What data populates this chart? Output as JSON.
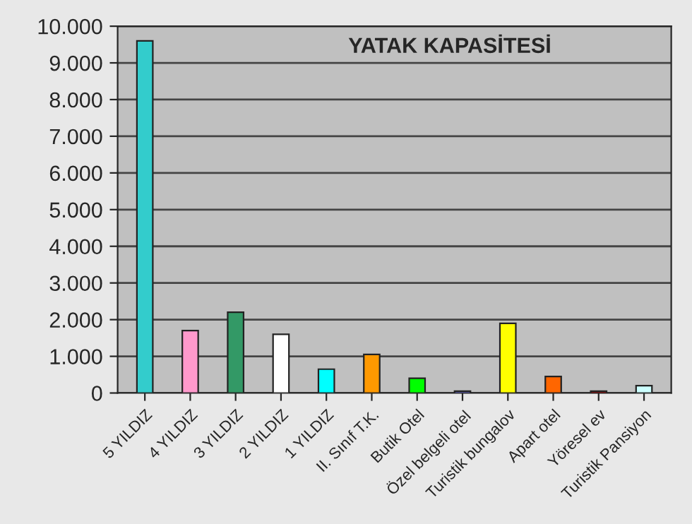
{
  "chart_data": {
    "type": "bar",
    "title": "YATAK KAPASİTESİ",
    "categories": [
      "5 YILDIZ",
      "4 YILDIZ",
      "3 YILDIZ",
      "2 YILDIZ",
      "1 YILDIZ",
      "II. Sınıf T.K.",
      "Butik Otel",
      "Özel belgeli otel",
      "Turistik bungalov",
      "Apart otel",
      "Yöresel ev",
      "Turistik Pansiyon"
    ],
    "values": [
      9600,
      1700,
      2200,
      1600,
      650,
      1050,
      400,
      50,
      1900,
      450,
      50,
      200
    ],
    "colors": [
      "#33cccc",
      "#ff99cc",
      "#339966",
      "#ffffff",
      "#00ffff",
      "#ff9900",
      "#00ff00",
      "#8080ff",
      "#ffff00",
      "#ff6600",
      "#cc0000",
      "#ccffff"
    ],
    "ylim": [
      0,
      10000
    ],
    "yticks": [
      {
        "value": 0,
        "label": "0"
      },
      {
        "value": 1000,
        "label": "1.000"
      },
      {
        "value": 2000,
        "label": "2.000"
      },
      {
        "value": 3000,
        "label": "3.000"
      },
      {
        "value": 4000,
        "label": "4.000"
      },
      {
        "value": 5000,
        "label": "5.000"
      },
      {
        "value": 6000,
        "label": "6.000"
      },
      {
        "value": 7000,
        "label": "7.000"
      },
      {
        "value": 8000,
        "label": "8.000"
      },
      {
        "value": 9000,
        "label": "9.000"
      },
      {
        "value": 10000,
        "label": "10.000"
      }
    ],
    "grid": "y"
  }
}
